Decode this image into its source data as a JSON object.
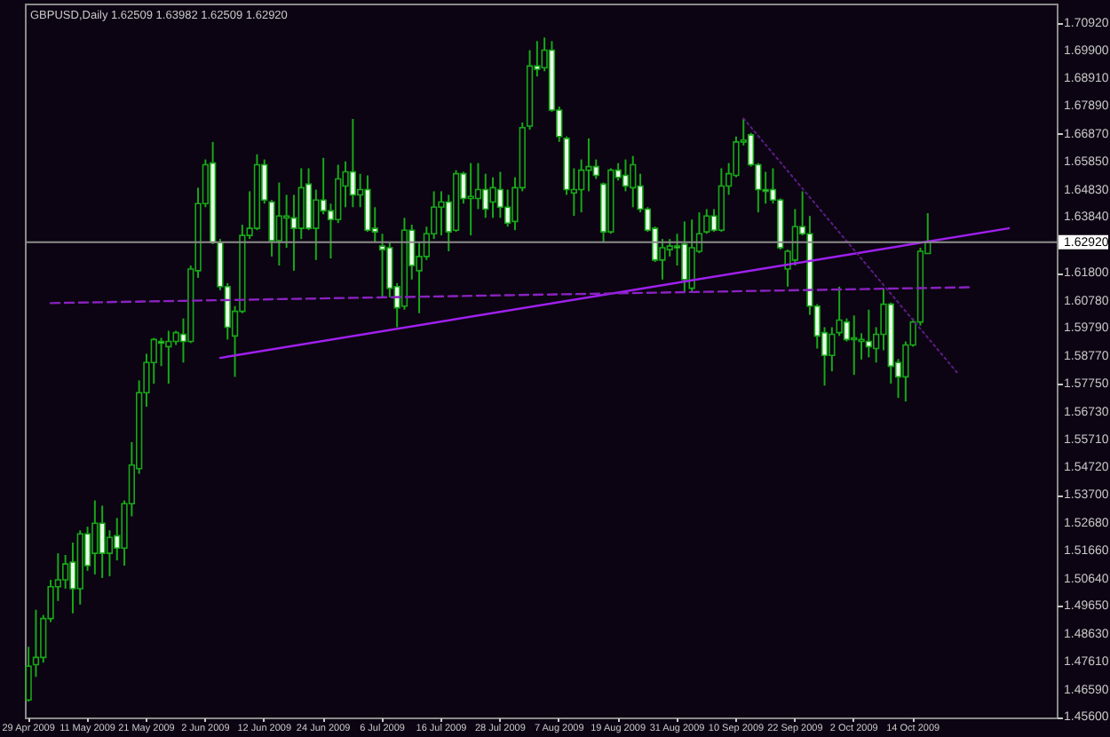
{
  "chart_data": {
    "type": "candlestick",
    "title": "GBPUSD,Daily 1.62509 1.63982 1.62509 1.62920",
    "color": "#18a818",
    "categories": [
      "29 Apr 2009",
      null,
      null,
      null,
      null,
      null,
      null,
      null,
      "11 May 2009",
      null,
      null,
      null,
      null,
      null,
      null,
      null,
      "21 May 2009",
      null,
      null,
      null,
      null,
      null,
      null,
      null,
      "2 Jun 2009",
      null,
      null,
      null,
      null,
      null,
      null,
      null,
      "12 Jun 2009",
      null,
      null,
      null,
      null,
      null,
      null,
      null,
      "24 Jun 2009",
      null,
      null,
      null,
      null,
      null,
      null,
      null,
      "6 Jul 2009",
      null,
      null,
      null,
      null,
      null,
      null,
      null,
      "16 Jul 2009",
      null,
      null,
      null,
      null,
      null,
      null,
      null,
      "28 Jul 2009",
      null,
      null,
      null,
      null,
      null,
      null,
      null,
      "7 Aug 2009",
      null,
      null,
      null,
      null,
      null,
      null,
      null,
      "19 Aug 2009",
      null,
      null,
      null,
      null,
      null,
      null,
      null,
      "31 Aug 2009",
      null,
      null,
      null,
      null,
      null,
      null,
      null,
      "10 Sep 2009",
      null,
      null,
      null,
      null,
      null,
      null,
      null,
      "22 Sep 2009",
      null,
      null,
      null,
      null,
      null,
      null,
      null,
      "2 Oct 2009",
      null,
      null,
      null,
      null,
      null,
      null,
      null,
      "14 Oct 2009",
      null,
      null,
      null,
      null,
      null,
      null,
      null,
      null,
      null,
      null,
      null,
      null,
      null,
      null,
      null,
      null,
      null,
      null,
      null
    ],
    "ohlc": [
      [
        1.4622,
        1.4816,
        1.4616,
        1.4745
      ],
      [
        1.4751,
        1.4951,
        1.4706,
        1.4777
      ],
      [
        1.4777,
        1.4932,
        1.4758,
        1.4919
      ],
      [
        1.4919,
        1.506,
        1.4906,
        1.5035
      ],
      [
        1.5035,
        1.5157,
        1.4983,
        1.506
      ],
      [
        1.506,
        1.5151,
        1.5028,
        1.5118
      ],
      [
        1.5125,
        1.5196,
        1.4938,
        1.5028
      ],
      [
        1.5028,
        1.5241,
        1.497,
        1.5228
      ],
      [
        1.5228,
        1.5254,
        1.5093,
        1.5112
      ],
      [
        1.5157,
        1.535,
        1.508,
        1.5267
      ],
      [
        1.5267,
        1.5331,
        1.5067,
        1.5157
      ],
      [
        1.5157,
        1.5241,
        1.5073,
        1.5215
      ],
      [
        1.5221,
        1.5286,
        1.5131,
        1.5176
      ],
      [
        1.5176,
        1.535,
        1.5112,
        1.5338
      ],
      [
        1.5338,
        1.5563,
        1.5292,
        1.5479
      ],
      [
        1.5466,
        1.5788,
        1.5447,
        1.5743
      ],
      [
        1.5743,
        1.5885,
        1.5692,
        1.5853
      ],
      [
        1.5853,
        1.5943,
        1.5776,
        1.5937
      ],
      [
        1.593,
        1.5943,
        1.584,
        1.5924
      ],
      [
        1.5911,
        1.5969,
        1.5776,
        1.593
      ],
      [
        1.593,
        1.5969,
        1.5917,
        1.5962
      ],
      [
        1.5956,
        1.6014,
        1.5853,
        1.593
      ],
      [
        1.593,
        1.6207,
        1.5924,
        1.6194
      ],
      [
        1.6188,
        1.6491,
        1.6162,
        1.6433
      ],
      [
        1.6433,
        1.6594,
        1.642,
        1.6575
      ],
      [
        1.6581,
        1.6658,
        1.6285,
        1.6291
      ],
      [
        1.6291,
        1.6304,
        1.6117,
        1.613
      ],
      [
        1.613,
        1.6143,
        1.5937,
        1.5982
      ],
      [
        1.595,
        1.6059,
        1.5801,
        1.604
      ],
      [
        1.604,
        1.6356,
        1.6033,
        1.6317
      ],
      [
        1.6317,
        1.6478,
        1.6304,
        1.6343
      ],
      [
        1.6343,
        1.6613,
        1.6336,
        1.6575
      ],
      [
        1.6575,
        1.6594,
        1.6433,
        1.6446
      ],
      [
        1.6439,
        1.6446,
        1.624,
        1.6298
      ],
      [
        1.6298,
        1.651,
        1.6207,
        1.6388
      ],
      [
        1.6381,
        1.6465,
        1.6272,
        1.6388
      ],
      [
        1.6381,
        1.6465,
        1.6188,
        1.6343
      ],
      [
        1.6343,
        1.6562,
        1.6304,
        1.6491
      ],
      [
        1.6504,
        1.6562,
        1.6336,
        1.6343
      ],
      [
        1.6343,
        1.6484,
        1.6227,
        1.6446
      ],
      [
        1.6446,
        1.66,
        1.6394,
        1.6407
      ],
      [
        1.6407,
        1.6433,
        1.6233,
        1.6375
      ],
      [
        1.6375,
        1.6575,
        1.6362,
        1.6523
      ],
      [
        1.6497,
        1.6587,
        1.642,
        1.6549
      ],
      [
        1.6549,
        1.6742,
        1.642,
        1.6465
      ],
      [
        1.6465,
        1.6542,
        1.642,
        1.6484
      ],
      [
        1.6484,
        1.6536,
        1.633,
        1.6336
      ],
      [
        1.6343,
        1.642,
        1.6291,
        1.633
      ],
      [
        1.6278,
        1.6323,
        1.6091,
        1.6265
      ],
      [
        1.6272,
        1.6291,
        1.6091,
        1.6124
      ],
      [
        1.613,
        1.6143,
        1.5982,
        1.6053
      ],
      [
        1.6059,
        1.6381,
        1.6046,
        1.6336
      ],
      [
        1.6336,
        1.6356,
        1.6156,
        1.6207
      ],
      [
        1.6188,
        1.6291,
        1.6033,
        1.624
      ],
      [
        1.624,
        1.6349,
        1.6227,
        1.6323
      ],
      [
        1.6323,
        1.6478,
        1.6304,
        1.642
      ],
      [
        1.642,
        1.6478,
        1.6317,
        1.6439
      ],
      [
        1.6439,
        1.6465,
        1.6259,
        1.633
      ],
      [
        1.6336,
        1.6555,
        1.633,
        1.6542
      ],
      [
        1.6542,
        1.6549,
        1.6433,
        1.6452
      ],
      [
        1.6452,
        1.6581,
        1.6317,
        1.6459
      ],
      [
        1.6452,
        1.6581,
        1.6413,
        1.6484
      ],
      [
        1.6484,
        1.6542,
        1.6381,
        1.6413
      ],
      [
        1.6439,
        1.6529,
        1.6381,
        1.6491
      ],
      [
        1.6484,
        1.6549,
        1.6381,
        1.642
      ],
      [
        1.642,
        1.6484,
        1.6349,
        1.6362
      ],
      [
        1.6368,
        1.6529,
        1.6336,
        1.6491
      ],
      [
        1.6491,
        1.6729,
        1.6478,
        1.671
      ],
      [
        1.6716,
        1.6993,
        1.6703,
        1.6935
      ],
      [
        1.6935,
        1.7026,
        1.6897,
        1.6923
      ],
      [
        1.6929,
        1.7039,
        1.6916,
        1.6993
      ],
      [
        1.6993,
        1.7026,
        1.6768,
        1.6774
      ],
      [
        1.6774,
        1.6787,
        1.6658,
        1.6678
      ],
      [
        1.6671,
        1.6678,
        1.6465,
        1.6484
      ],
      [
        1.6472,
        1.6562,
        1.6388,
        1.6484
      ],
      [
        1.6484,
        1.6594,
        1.6401,
        1.6555
      ],
      [
        1.6555,
        1.6671,
        1.6478,
        1.6568
      ],
      [
        1.6568,
        1.6594,
        1.6523,
        1.6536
      ],
      [
        1.6504,
        1.651,
        1.6291,
        1.633
      ],
      [
        1.633,
        1.6562,
        1.6323,
        1.6555
      ],
      [
        1.6555,
        1.6581,
        1.6517,
        1.6529
      ],
      [
        1.6536,
        1.6594,
        1.6478,
        1.6497
      ],
      [
        1.6491,
        1.6607,
        1.642,
        1.6575
      ],
      [
        1.6497,
        1.6542,
        1.6401,
        1.6413
      ],
      [
        1.6413,
        1.642,
        1.633,
        1.6336
      ],
      [
        1.6343,
        1.6349,
        1.622,
        1.6227
      ],
      [
        1.6227,
        1.6304,
        1.6156,
        1.6272
      ],
      [
        1.6265,
        1.6304,
        1.624,
        1.6278
      ],
      [
        1.6278,
        1.6323,
        1.6207,
        1.6272
      ],
      [
        1.6285,
        1.6368,
        1.6111,
        1.6156
      ],
      [
        1.6124,
        1.6375,
        1.6111,
        1.6272
      ],
      [
        1.6259,
        1.6401,
        1.6252,
        1.6323
      ],
      [
        1.633,
        1.6413,
        1.6323,
        1.6388
      ],
      [
        1.6388,
        1.6413,
        1.633,
        1.6336
      ],
      [
        1.6336,
        1.6562,
        1.633,
        1.6497
      ],
      [
        1.6497,
        1.6581,
        1.6465,
        1.6542
      ],
      [
        1.6536,
        1.6678,
        1.6529,
        1.6658
      ],
      [
        1.6658,
        1.6742,
        1.6645,
        1.6665
      ],
      [
        1.6684,
        1.6691,
        1.6568,
        1.6575
      ],
      [
        1.6575,
        1.6581,
        1.6401,
        1.6484
      ],
      [
        1.6484,
        1.6549,
        1.6433,
        1.6478
      ],
      [
        1.6484,
        1.6562,
        1.6433,
        1.6446
      ],
      [
        1.6446,
        1.6452,
        1.6265,
        1.6272
      ],
      [
        1.6194,
        1.6265,
        1.613,
        1.6259
      ],
      [
        1.6227,
        1.6413,
        1.6207,
        1.6349
      ],
      [
        1.6349,
        1.6478,
        1.6317,
        1.6323
      ],
      [
        1.6323,
        1.6388,
        1.6027,
        1.6059
      ],
      [
        1.6059,
        1.6066,
        1.5904,
        1.595
      ],
      [
        1.5962,
        1.5982,
        1.5769,
        1.5879
      ],
      [
        1.5879,
        1.5982,
        1.5821,
        1.5956
      ],
      [
        1.5962,
        1.613,
        1.595,
        1.6008
      ],
      [
        1.6001,
        1.6014,
        1.593,
        1.5937
      ],
      [
        1.5937,
        1.6025,
        1.5808,
        1.5943
      ],
      [
        1.593,
        1.596,
        1.5864,
        1.5937
      ],
      [
        1.593,
        1.6046,
        1.5872,
        1.5911
      ],
      [
        1.5904,
        1.5982,
        1.5853,
        1.5956
      ],
      [
        1.5956,
        1.6124,
        1.5898,
        1.6066
      ],
      [
        1.6066,
        1.6072,
        1.5776,
        1.584
      ],
      [
        1.5853,
        1.5866,
        1.5724,
        1.5801
      ],
      [
        1.5801,
        1.593,
        1.5711,
        1.5917
      ],
      [
        1.5917,
        1.6014,
        1.5911,
        1.6001
      ],
      [
        1.6001,
        1.6272,
        1.5988,
        1.6259
      ],
      [
        1.62509,
        1.63982,
        1.62509,
        1.6292
      ],
      null,
      null,
      null,
      null,
      null,
      null,
      null,
      null,
      null,
      null,
      null,
      null,
      null,
      null,
      null,
      null,
      null
    ],
    "colors": [
      "#0c0412",
      "#0c0412",
      "#0c0412",
      "#0c0412",
      "#0c0412",
      "#0c0412",
      "#eaffea",
      "#0c0412",
      "#eaffea",
      "#0c0412",
      "#eaffea",
      "#0c0412",
      "#eaffea",
      "#0c0412",
      "#0c0412",
      "#0c0412",
      "#0c0412",
      "#0c0412",
      "#eaffea",
      "#0c0412",
      "#0c0412",
      "#eaffea",
      "#0c0412",
      "#0c0412",
      "#0c0412",
      "#eaffea",
      "#eaffea",
      "#eaffea",
      "#0c0412",
      "#0c0412",
      "#0c0412",
      "#0c0412",
      "#eaffea",
      "#eaffea",
      "#0c0412",
      "#0c0412",
      "#eaffea",
      "#0c0412",
      "#eaffea",
      "#0c0412",
      "#eaffea",
      "#eaffea",
      "#0c0412",
      "#0c0412",
      "#eaffea",
      "#0c0412",
      "#eaffea",
      "#eaffea",
      "#eaffea",
      "#eaffea",
      "#eaffea",
      "#0c0412",
      "#eaffea",
      "#0c0412",
      "#0c0412",
      "#0c0412",
      "#0c0412",
      "#eaffea",
      "#0c0412",
      "#eaffea",
      "#0c0412",
      "#0c0412",
      "#eaffea",
      "#0c0412",
      "#eaffea",
      "#eaffea",
      "#0c0412",
      "#0c0412",
      "#0c0412",
      "#eaffea",
      "#0c0412",
      "#eaffea",
      "#eaffea",
      "#eaffea",
      "#0c0412",
      "#0c0412",
      "#0c0412",
      "#eaffea",
      "#eaffea",
      "#0c0412",
      "#eaffea",
      "#eaffea",
      "#0c0412",
      "#eaffea",
      "#eaffea",
      "#eaffea",
      "#0c0412",
      "#0c0412",
      "#eaffea",
      "#eaffea",
      "#0c0412",
      "#0c0412",
      "#0c0412",
      "#eaffea",
      "#0c0412",
      "#0c0412",
      "#0c0412",
      "#0c0412",
      "#eaffea",
      "#eaffea",
      "#eaffea",
      "#eaffea",
      "#eaffea",
      "#0c0412",
      "#0c0412",
      "#eaffea",
      "#eaffea",
      "#eaffea",
      "#eaffea",
      "#0c0412",
      "#0c0412",
      "#eaffea",
      "#0c0412",
      "#0c0412",
      "#eaffea",
      "#0c0412",
      "#0c0412",
      "#eaffea",
      "#eaffea",
      "#0c0412",
      "#0c0412",
      "#0c0412",
      "#0c0412",
      null,
      null,
      null,
      null,
      null,
      null,
      null,
      null,
      null,
      null,
      null,
      null,
      null,
      null,
      null,
      null,
      null
    ],
    "series": [
      {
        "type": "line",
        "color": "#a020f0",
        "line_style": "solid",
        "values": [
          null,
          null,
          null,
          null,
          null,
          null,
          null,
          null,
          null,
          null,
          null,
          null,
          null,
          null,
          null,
          null,
          null,
          null,
          null,
          null,
          null,
          null,
          null,
          null,
          null,
          null,
          1.587,
          null,
          null,
          null,
          null,
          null,
          null,
          null,
          null,
          null,
          null,
          null,
          null,
          null,
          null,
          null,
          null,
          null,
          null,
          null,
          null,
          null,
          null,
          null,
          null,
          null,
          null,
          null,
          null,
          null,
          null,
          null,
          null,
          null,
          null,
          null,
          null,
          null,
          null,
          null,
          null,
          null,
          null,
          null,
          null,
          null,
          null,
          null,
          null,
          null,
          null,
          null,
          null,
          null,
          null,
          null,
          null,
          null,
          null,
          null,
          null,
          null,
          null,
          null,
          null,
          null,
          null,
          null,
          null,
          null,
          null,
          null,
          null,
          null,
          null,
          null,
          null,
          null,
          null,
          null,
          null,
          null,
          null,
          null,
          null,
          null,
          null,
          null,
          null,
          null,
          null,
          null,
          null,
          null,
          null,
          null,
          null,
          null,
          null,
          null,
          null,
          null,
          null,
          null,
          null,
          null,
          null,
          1.6343,
          null,
          null,
          null,
          null,
          null,
          null
        ]
      },
      {
        "type": "line",
        "color": "#8a22c0",
        "line_style": "dashed",
        "values": [
          null,
          null,
          null,
          1.607,
          null,
          null,
          null,
          null,
          null,
          null,
          null,
          null,
          null,
          null,
          null,
          null,
          null,
          null,
          null,
          null,
          null,
          null,
          null,
          null,
          null,
          null,
          null,
          null,
          null,
          null,
          null,
          null,
          null,
          null,
          null,
          null,
          null,
          null,
          null,
          null,
          null,
          null,
          null,
          null,
          null,
          null,
          null,
          null,
          null,
          null,
          null,
          null,
          null,
          null,
          null,
          null,
          null,
          null,
          null,
          null,
          null,
          null,
          null,
          null,
          null,
          null,
          null,
          null,
          null,
          null,
          null,
          null,
          null,
          null,
          null,
          null,
          null,
          null,
          null,
          null,
          null,
          null,
          null,
          null,
          null,
          null,
          null,
          null,
          null,
          null,
          null,
          null,
          null,
          null,
          null,
          null,
          null,
          null,
          null,
          null,
          null,
          null,
          null,
          null,
          null,
          null,
          null,
          null,
          null,
          null,
          null,
          null,
          null,
          null,
          null,
          null,
          null,
          null,
          null,
          null,
          null,
          null,
          null,
          null,
          null,
          null,
          null,
          null,
          1.6128,
          null,
          null,
          null,
          null,
          null,
          null,
          null,
          null,
          null,
          null,
          null
        ]
      },
      {
        "type": "line",
        "color": "#5c1c86",
        "line_style": "dotted",
        "values": [
          null,
          null,
          null,
          null,
          null,
          null,
          null,
          null,
          null,
          null,
          null,
          null,
          null,
          null,
          null,
          null,
          null,
          null,
          null,
          null,
          null,
          null,
          null,
          null,
          null,
          null,
          null,
          null,
          null,
          null,
          null,
          null,
          null,
          null,
          null,
          null,
          null,
          null,
          null,
          null,
          null,
          null,
          null,
          null,
          null,
          null,
          null,
          null,
          null,
          null,
          null,
          null,
          null,
          null,
          null,
          null,
          null,
          null,
          null,
          null,
          null,
          null,
          null,
          null,
          null,
          null,
          null,
          null,
          null,
          null,
          null,
          null,
          null,
          null,
          null,
          null,
          null,
          null,
          null,
          null,
          null,
          null,
          null,
          null,
          null,
          null,
          null,
          null,
          null,
          null,
          null,
          null,
          null,
          null,
          null,
          null,
          null,
          1.6744,
          null,
          null,
          null,
          null,
          null,
          null,
          null,
          null,
          null,
          null,
          null,
          null,
          null,
          null,
          null,
          null,
          null,
          null,
          null,
          null,
          null,
          null,
          null,
          null,
          null,
          null,
          null,
          null,
          1.5816,
          null,
          null,
          null,
          null,
          null,
          null,
          null,
          null,
          null,
          null,
          null,
          null,
          null
        ]
      }
    ],
    "ref_lines": [
      {
        "axis": "y",
        "value": 1.6292,
        "label": "1.62920",
        "color": "#8c8c8c"
      }
    ],
    "ylim": [
      1.4558,
      1.7163
    ],
    "yticks": [
      {
        "value": 1.7092,
        "label": "1.70920"
      },
      {
        "value": 1.699,
        "label": "1.69900"
      },
      {
        "value": 1.6891,
        "label": "1.68910"
      },
      {
        "value": 1.6789,
        "label": "1.67890"
      },
      {
        "value": 1.6687,
        "label": "1.66870"
      },
      {
        "value": 1.6585,
        "label": "1.65850"
      },
      {
        "value": 1.6483,
        "label": "1.64830"
      },
      {
        "value": 1.6384,
        "label": "1.63840"
      },
      {
        "value": 1.618,
        "label": "1.61800"
      },
      {
        "value": 1.6078,
        "label": "1.60780"
      },
      {
        "value": 1.5979,
        "label": "1.59790"
      },
      {
        "value": 1.5877,
        "label": "1.58770"
      },
      {
        "value": 1.5775,
        "label": "1.57750"
      },
      {
        "value": 1.5673,
        "label": "1.56730"
      },
      {
        "value": 1.5571,
        "label": "1.55710"
      },
      {
        "value": 1.5472,
        "label": "1.54720"
      },
      {
        "value": 1.537,
        "label": "1.53700"
      },
      {
        "value": 1.5268,
        "label": "1.52680"
      },
      {
        "value": 1.5166,
        "label": "1.51660"
      },
      {
        "value": 1.5064,
        "label": "1.50640"
      },
      {
        "value": 1.4965,
        "label": "1.49650"
      },
      {
        "value": 1.4863,
        "label": "1.48630"
      },
      {
        "value": 1.4761,
        "label": "1.47610"
      },
      {
        "value": 1.4659,
        "label": "1.46590"
      },
      {
        "value": 1.456,
        "label": "1.45600"
      }
    ]
  }
}
